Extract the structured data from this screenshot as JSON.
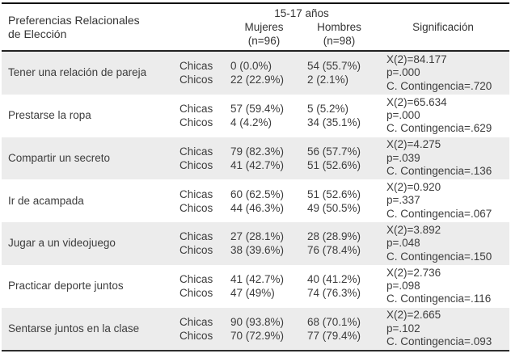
{
  "table": {
    "header": {
      "preference_line1": "Preferencias Relacionales",
      "preference_line2": "de Elección",
      "age_group": "15-17 años",
      "mujeres": "Mujeres",
      "mujeres_n": "(n=96)",
      "hombres": "Hombres",
      "hombres_n": "(n=98)",
      "significacion": "Significación"
    },
    "rows": [
      {
        "label": "Tener una relación de pareja",
        "sub": [
          "Chicas",
          "Chicos"
        ],
        "mujeres": [
          "0 (0.0%)",
          "22 (22.9%)"
        ],
        "hombres": [
          "54 (55.7%)",
          "2 (2.1%)"
        ],
        "sig": [
          "X(2)=84.177",
          "p=.000",
          "C. Contingencia=.720"
        ]
      },
      {
        "label": "Prestarse la ropa",
        "sub": [
          "Chicas",
          "Chicos"
        ],
        "mujeres": [
          "57 (59.4%)",
          "4 (4.2%)"
        ],
        "hombres": [
          "5 (5.2%)",
          "34 (35.1%)"
        ],
        "sig": [
          "X(2)=65.634",
          "p=.000",
          "C. Contingencia=.629"
        ]
      },
      {
        "label": "Compartir un secreto",
        "sub": [
          "Chicas",
          "Chicos"
        ],
        "mujeres": [
          "79 (82.3%)",
          "41 (42.7%)"
        ],
        "hombres": [
          "56 (57.7%)",
          "51 (52.6%)"
        ],
        "sig": [
          "X(2)=4.275",
          "p=.039",
          "C. Contingencia=.136"
        ]
      },
      {
        "label": "Ir de acampada",
        "sub": [
          "Chicas",
          "Chicos"
        ],
        "mujeres": [
          "60 (62.5%)",
          "44 (46.3%)"
        ],
        "hombres": [
          "51 (52.6%)",
          "49 (50.5%)"
        ],
        "sig": [
          "X(2)=0.920",
          "p=.337",
          "C. Contingencia=.067"
        ]
      },
      {
        "label": "Jugar a un videojuego",
        "sub": [
          "Chicas",
          "Chicos"
        ],
        "mujeres": [
          "27 (28.1%)",
          "38 (39.6%)"
        ],
        "hombres": [
          "28 (28.9%)",
          "76 (78.4%)"
        ],
        "sig": [
          "X(2)=3.892",
          "p=.048",
          "C. Contingencia=.150"
        ]
      },
      {
        "label": "Practicar deporte juntos",
        "sub": [
          "Chicas",
          "Chicos"
        ],
        "mujeres": [
          "41 (42.7%)",
          "47 (49%)"
        ],
        "hombres": [
          "40 (41.2%)",
          "74 (76.3%)"
        ],
        "sig": [
          "X(2)=2.736",
          "p=.098",
          "C. Contingencia=.116"
        ]
      },
      {
        "label": "Sentarse juntos en la clase",
        "sub": [
          "Chicas",
          "Chicos"
        ],
        "mujeres": [
          "90 (93.8%)",
          "70 (72.9%)"
        ],
        "hombres": [
          "68 (70.1%)",
          "77 (79.4%)"
        ],
        "sig": [
          "X(2)=2.665",
          "p=.102",
          "C. Contingencia=.093"
        ]
      }
    ]
  },
  "colors": {
    "row_shade": "#ececec",
    "text": "#3d3d3d",
    "border_top": "#0f0f0f",
    "header_rule": "#222222",
    "border_bottom": "#2e2e2e"
  }
}
